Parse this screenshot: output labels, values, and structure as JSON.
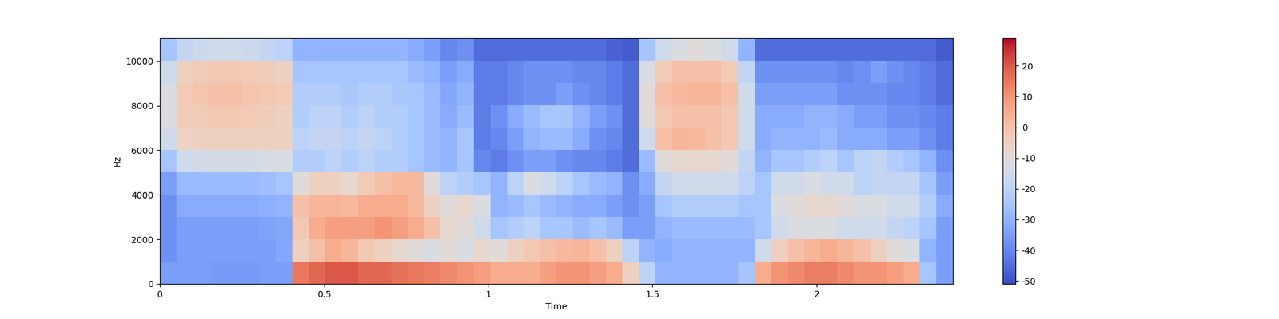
{
  "chart_data": {
    "type": "heatmap",
    "x_label": "Time",
    "y_label": "Hz",
    "xlim": [
      0,
      2.415
    ],
    "xticks": [
      0,
      0.5,
      1,
      1.5,
      2
    ],
    "ylim": [
      0,
      11025
    ],
    "yticks": [
      0,
      2000,
      4000,
      6000,
      8000,
      10000
    ],
    "color": "coolwarm",
    "color_range": [
      -51,
      29
    ],
    "color_ticks": [
      -50,
      -40,
      -30,
      -20,
      -10,
      0,
      10,
      20
    ],
    "cells": [
      [
        -35,
        -38,
        -38,
        -38,
        -35,
        -25,
        -15,
        -12,
        -12,
        -15,
        -25
      ],
      [
        -35,
        -35,
        -35,
        -32,
        -28,
        -15,
        -6,
        -4,
        -3,
        -5,
        -18
      ],
      [
        -35,
        -35,
        -35,
        -32,
        -28,
        -14,
        -5,
        -3,
        -1,
        -3,
        -16
      ],
      [
        -36,
        -35,
        -35,
        -32,
        -28,
        -14,
        -5,
        -2,
        0,
        -2,
        -15
      ],
      [
        -36,
        -35,
        -35,
        -32,
        -28,
        -14,
        -5,
        -2,
        0,
        -2,
        -15
      ],
      [
        -36,
        -35,
        -35,
        -32,
        -28,
        -14,
        -5,
        -3,
        -1,
        -3,
        -16
      ],
      [
        -35,
        -35,
        -34,
        -31,
        -27,
        -13,
        -5,
        -4,
        -2,
        -4,
        -18
      ],
      [
        -35,
        -33,
        -33,
        -30,
        -25,
        -12,
        -5,
        -5,
        -3,
        -5,
        -20
      ],
      [
        15,
        -5,
        -2,
        0,
        -10,
        -22,
        -20,
        -22,
        -22,
        -25,
        -30
      ],
      [
        18,
        0,
        5,
        3,
        -5,
        -22,
        -18,
        -20,
        -22,
        -25,
        -30
      ],
      [
        20,
        5,
        8,
        3,
        -5,
        -20,
        -18,
        -20,
        -22,
        -25,
        -30
      ],
      [
        20,
        3,
        8,
        2,
        -8,
        -22,
        -20,
        -22,
        -24,
        -25,
        -30
      ],
      [
        18,
        -2,
        8,
        5,
        -3,
        -20,
        -18,
        -20,
        -22,
        -25,
        -30
      ],
      [
        18,
        -5,
        10,
        5,
        0,
        -22,
        -20,
        -22,
        -22,
        -25,
        -30
      ],
      [
        16,
        -8,
        8,
        5,
        2,
        -22,
        -22,
        -22,
        -24,
        -25,
        -30
      ],
      [
        15,
        -10,
        5,
        2,
        2,
        -25,
        -25,
        -25,
        -25,
        -28,
        -32
      ],
      [
        14,
        -12,
        0,
        -5,
        -10,
        -28,
        -28,
        -28,
        -28,
        -30,
        -35
      ],
      [
        12,
        -10,
        -8,
        -10,
        -20,
        -30,
        -30,
        -32,
        -33,
        -35,
        -40
      ],
      [
        10,
        -12,
        -10,
        -8,
        -22,
        -25,
        -25,
        -28,
        -30,
        -32,
        -38
      ],
      [
        8,
        -8,
        -15,
        -12,
        -25,
        -40,
        -42,
        -42,
        -42,
        -42,
        -45
      ],
      [
        5,
        -10,
        -25,
        -30,
        -30,
        -42,
        -40,
        -38,
        -42,
        -42,
        -45
      ],
      [
        5,
        -5,
        -22,
        -28,
        -20,
        -38,
        -35,
        -32,
        -40,
        -40,
        -45
      ],
      [
        5,
        -2,
        -20,
        -25,
        -12,
        -35,
        -30,
        -28,
        -38,
        -38,
        -45
      ],
      [
        8,
        0,
        -25,
        -28,
        -15,
        -35,
        -28,
        -25,
        -38,
        -38,
        -45
      ],
      [
        10,
        2,
        -25,
        -30,
        -20,
        -38,
        -28,
        -25,
        -35,
        -38,
        -45
      ],
      [
        10,
        3,
        -28,
        -32,
        -25,
        -40,
        -32,
        -30,
        -38,
        -40,
        -45
      ],
      [
        8,
        0,
        -25,
        -32,
        -28,
        -40,
        -38,
        -35,
        -40,
        -40,
        -45
      ],
      [
        5,
        -5,
        -28,
        -35,
        -30,
        -42,
        -40,
        -38,
        -42,
        -42,
        -47
      ],
      [
        -5,
        -20,
        -35,
        -38,
        -38,
        -45,
        -45,
        -45,
        -45,
        -45,
        -48
      ],
      [
        -20,
        -30,
        -35,
        -35,
        -32,
        -28,
        -15,
        -10,
        -10,
        -12,
        -25
      ],
      [
        -30,
        -32,
        -30,
        -25,
        -18,
        -10,
        0,
        -2,
        0,
        -3,
        -15
      ],
      [
        -30,
        -30,
        -28,
        -22,
        -15,
        -8,
        3,
        0,
        2,
        0,
        -12
      ],
      [
        -30,
        -30,
        -28,
        -22,
        -15,
        -8,
        2,
        0,
        3,
        0,
        -10
      ],
      [
        -30,
        -30,
        -28,
        -22,
        -15,
        -8,
        0,
        0,
        3,
        0,
        -12
      ],
      [
        -30,
        -30,
        -28,
        -22,
        -15,
        -10,
        -2,
        -2,
        0,
        -3,
        -15
      ],
      [
        -25,
        -30,
        -28,
        -25,
        -20,
        -18,
        -15,
        -15,
        -15,
        -18,
        -30
      ],
      [
        5,
        -15,
        -25,
        -25,
        -25,
        -30,
        -32,
        -32,
        -35,
        -38,
        -45
      ],
      [
        10,
        -5,
        -15,
        -12,
        -15,
        -25,
        -30,
        -32,
        -35,
        -38,
        -45
      ],
      [
        12,
        0,
        -12,
        -10,
        -15,
        -25,
        -30,
        -32,
        -35,
        -38,
        -45
      ],
      [
        14,
        3,
        -12,
        -8,
        -12,
        -22,
        -30,
        -30,
        -35,
        -38,
        -45
      ],
      [
        14,
        5,
        -12,
        -8,
        -15,
        -20,
        -28,
        -30,
        -35,
        -38,
        -45
      ],
      [
        12,
        3,
        -15,
        -10,
        -15,
        -25,
        -32,
        -32,
        -38,
        -40,
        -45
      ],
      [
        10,
        0,
        -15,
        -12,
        -20,
        -20,
        -32,
        -35,
        -38,
        -38,
        -45
      ],
      [
        10,
        -5,
        -15,
        -12,
        -18,
        -18,
        -32,
        -35,
        -38,
        -35,
        -45
      ],
      [
        8,
        -10,
        -18,
        -15,
        -18,
        -22,
        -35,
        -38,
        -40,
        -38,
        -45
      ],
      [
        5,
        -12,
        -20,
        -15,
        -18,
        -25,
        -35,
        -38,
        -40,
        -40,
        -45
      ],
      [
        -25,
        -30,
        -25,
        -22,
        -25,
        -30,
        -38,
        -40,
        -42,
        -42,
        -45
      ],
      [
        -35,
        -35,
        -35,
        -32,
        -35,
        -38,
        -42,
        -42,
        -45,
        -45,
        -48
      ]
    ]
  }
}
